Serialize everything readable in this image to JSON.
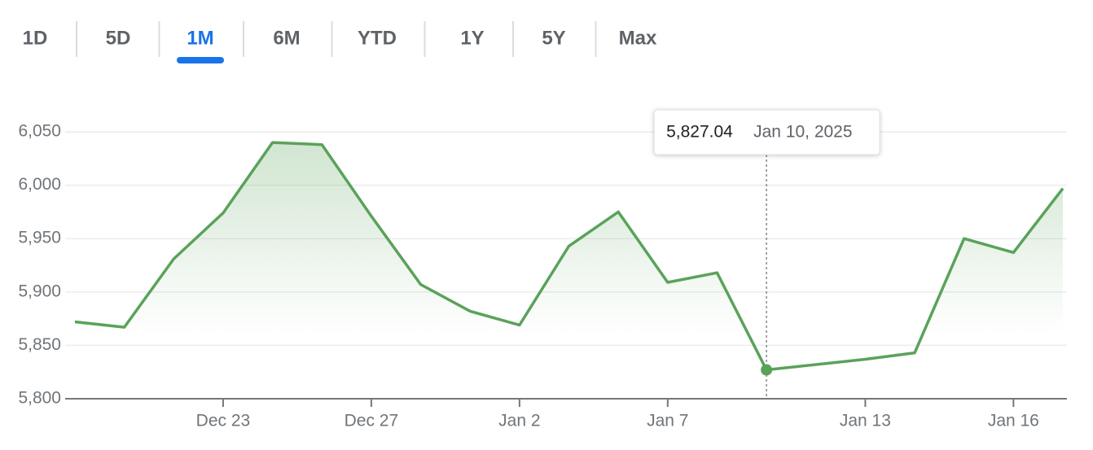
{
  "tabs": {
    "items": [
      "1D",
      "5D",
      "1M",
      "6M",
      "YTD",
      "1Y",
      "5Y",
      "Max"
    ],
    "selected": 2
  },
  "chart_data": {
    "type": "line",
    "categories": [
      null,
      null,
      null,
      "Dec 23",
      null,
      null,
      "Dec 27",
      null,
      null,
      "Jan 2",
      null,
      null,
      "Jan 7",
      null,
      null,
      null,
      "Jan 13",
      null,
      null,
      "Jan 16",
      null
    ],
    "series": [
      {
        "color": "#5aa25a",
        "values": [
          5872,
          5867,
          5931,
          5974,
          6040,
          6038,
          5971,
          5907,
          5882,
          5869,
          5943,
          5975,
          5909,
          5918,
          5827.04,
          null,
          5837,
          5843,
          5950,
          5937,
          5997
        ]
      }
    ],
    "ylim": [
      5800,
      6050
    ],
    "yticks": [
      {
        "value": 5800,
        "label": "5,800"
      },
      {
        "value": 5850,
        "label": "5,850"
      },
      {
        "value": 5900,
        "label": "5,900"
      },
      {
        "value": 5950,
        "label": "5,950"
      },
      {
        "value": 6000,
        "label": "6,000"
      },
      {
        "value": 6050,
        "label": "6,050"
      }
    ],
    "grid": true,
    "highlight": 14,
    "tooltip": {
      "label": "5,827.04",
      "date": "Jan 10, 2025"
    }
  }
}
